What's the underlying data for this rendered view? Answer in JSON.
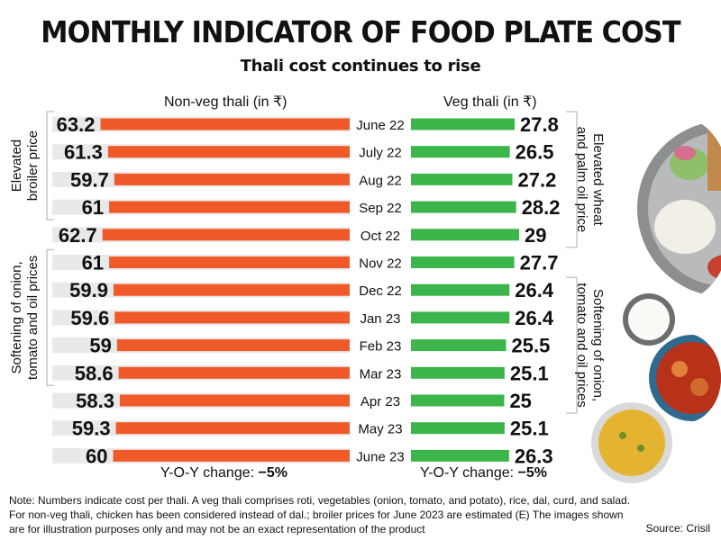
{
  "header": {
    "title": "MONTHLY INDICATOR OF FOOD PLATE COST",
    "subtitle": "Thali cost continues to rise"
  },
  "chart_data": {
    "type": "bar",
    "categories": [
      "June 22",
      "July 22",
      "Aug 22",
      "Sep 22",
      "Oct 22",
      "Nov 22",
      "Dec 22",
      "Jan 23",
      "Feb 23",
      "Mar 23",
      "Apr 23",
      "May 23",
      "June 23"
    ],
    "series": [
      {
        "name": "Non-veg thali (in ₹)",
        "values": [
          63.2,
          61.3,
          59.7,
          61,
          62.7,
          61,
          59.9,
          59.6,
          59,
          58.6,
          58.3,
          59.3,
          60
        ],
        "color": "#f05a28"
      },
      {
        "name": "Veg thali (in ₹)",
        "values": [
          27.8,
          26.5,
          27.2,
          28.2,
          29,
          27.7,
          26.4,
          26.4,
          25.5,
          25.1,
          25,
          25.1,
          26.3
        ],
        "color": "#3cb54a"
      }
    ],
    "annotations": [
      {
        "text": "Elevated broiler price",
        "series": "Non-veg thali (in ₹)",
        "from": "June 22",
        "to": "Sep 22"
      },
      {
        "text": "Softening of onion, tomato and oil prices",
        "series": "Non-veg thali (in ₹)",
        "from": "Nov 22",
        "to": "Mar 23"
      },
      {
        "text": "Elevated wheat and palm oil price",
        "series": "Veg thali (in ₹)",
        "from": "June 22",
        "to": "Oct 22"
      },
      {
        "text": "Softening of onion, tomato and oil prices",
        "series": "Veg thali (in ₹)",
        "from": "Dec 22",
        "to": "Apr 23"
      }
    ],
    "yoy_label": "Y-O-Y change:",
    "yoy_nonveg": "−5%",
    "yoy_veg": "−5%"
  },
  "footer": {
    "note": "Note: Numbers indicate cost per thali. A veg thali comprises roti, vegetables (onion, tomato, and potato), rice, dal, curd, and salad. For non-veg thali, chicken has been considered instead of dal.; broiler prices for June 2023 are estimated (E) The images shown are for illustration purposes only and may not be an exact representation of the product",
    "source": "Source: Crisil"
  },
  "colors": {
    "nonveg": "#f05a28",
    "veg": "#3cb54a",
    "gridRow": "#e9e9e9",
    "bracket": "#c8c8c8"
  },
  "images": [
    "thali-plate-icon",
    "curd-bowl-icon",
    "chicken-curry-icon",
    "dal-bowl-icon"
  ]
}
